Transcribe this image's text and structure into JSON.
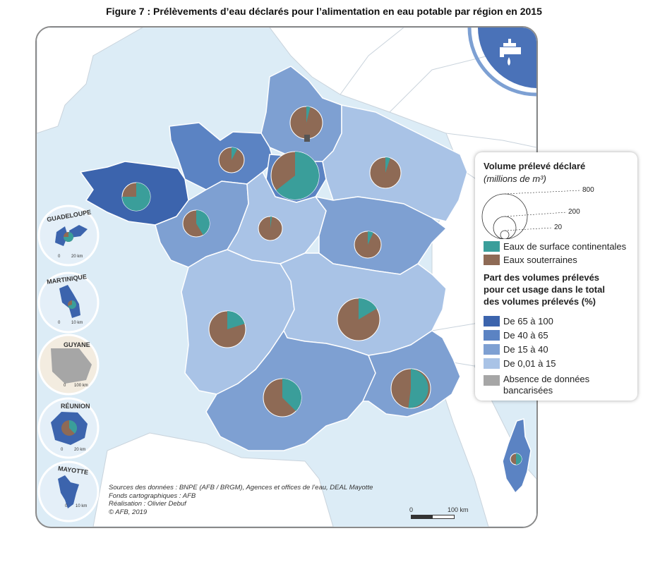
{
  "title": "Figure 7 : Prélèvements d’eau déclarés pour l’alimentation en eau potable par région en 2015",
  "colors": {
    "class_65_100": "#3c64ad",
    "class_40_65": "#5b83c3",
    "class_15_40": "#7ea0d2",
    "class_001_15": "#a9c3e6",
    "no_data": "#a6a6a6",
    "surface": "#3a9e9a",
    "ground": "#8e6a55",
    "sea": "#dcecf6",
    "neighbours": "#ffffff"
  },
  "legend": {
    "volume_title": "Volume prélevé déclaré",
    "volume_unit": "(millions de m³)",
    "volume_values": [
      "800",
      "200",
      "20"
    ],
    "surface_label": "Eaux de surface continentales",
    "ground_label": "Eaux souterraines",
    "share_title_1": "Part des volumes prélevés",
    "share_title_2": "pour cet usage dans le total",
    "share_title_3": "des volumes prélevés (%)",
    "classes": [
      "De 65 à 100",
      "De 40 à 65",
      "De 15 à 40",
      "De 0,01 à 15"
    ],
    "no_data_1": "Absence de données",
    "no_data_2": "bancarisées"
  },
  "insets": [
    "GUADELOUPE",
    "MARTINIQUE",
    "GUYANE",
    "RÉUNION",
    "MAYOTTE"
  ],
  "inset_scales": [
    "0",
    "20 km",
    "0",
    "10 km",
    "0",
    "100 km",
    "0",
    "20 km",
    "0",
    "10 km"
  ],
  "credits": [
    "Sources des données : BNPE (AFB / BRGM), Agences et offices de l’eau, DEAL Mayotte",
    "Fonds cartographiques : AFB",
    "Réalisation : Olivier Debuf",
    "© AFB, 2019"
  ],
  "scale_bar": {
    "start": "0",
    "end": "100 km"
  },
  "regions": [
    {
      "name": "Bretagne",
      "class": "De 65 à 100",
      "surface_share": 0.75
    },
    {
      "name": "Normandie",
      "class": "De 40 à 65",
      "surface_share": 0.08
    },
    {
      "name": "Hauts-de-France",
      "class": "De 15 à 40",
      "surface_share": 0.04
    },
    {
      "name": "Île-de-France",
      "class": "De 40 à 65",
      "surface_share": 0.62
    },
    {
      "name": "Grand Est",
      "class": "De 0,01 à 15",
      "surface_share": 0.05
    },
    {
      "name": "Pays de la Loire",
      "class": "De 15 à 40",
      "surface_share": 0.42
    },
    {
      "name": "Centre-Val de Loire",
      "class": "De 0,01 à 15",
      "surface_share": 0.02
    },
    {
      "name": "Bourgogne-Franche-Comté",
      "class": "De 15 à 40",
      "surface_share": 0.07
    },
    {
      "name": "Nouvelle-Aquitaine",
      "class": "De 0,01 à 15",
      "surface_share": 0.1
    },
    {
      "name": "Auvergne-Rhône-Alpes",
      "class": "De 0,01 à 15",
      "surface_share": 0.08
    },
    {
      "name": "Occitanie",
      "class": "De 15 à 40",
      "surface_share": 0.38
    },
    {
      "name": "Provence-Alpes-Côte d’Azur",
      "class": "De 15 à 40",
      "surface_share": 0.52
    },
    {
      "name": "Corse",
      "class": "De 15 à 40",
      "surface_share": 0.5
    }
  ]
}
